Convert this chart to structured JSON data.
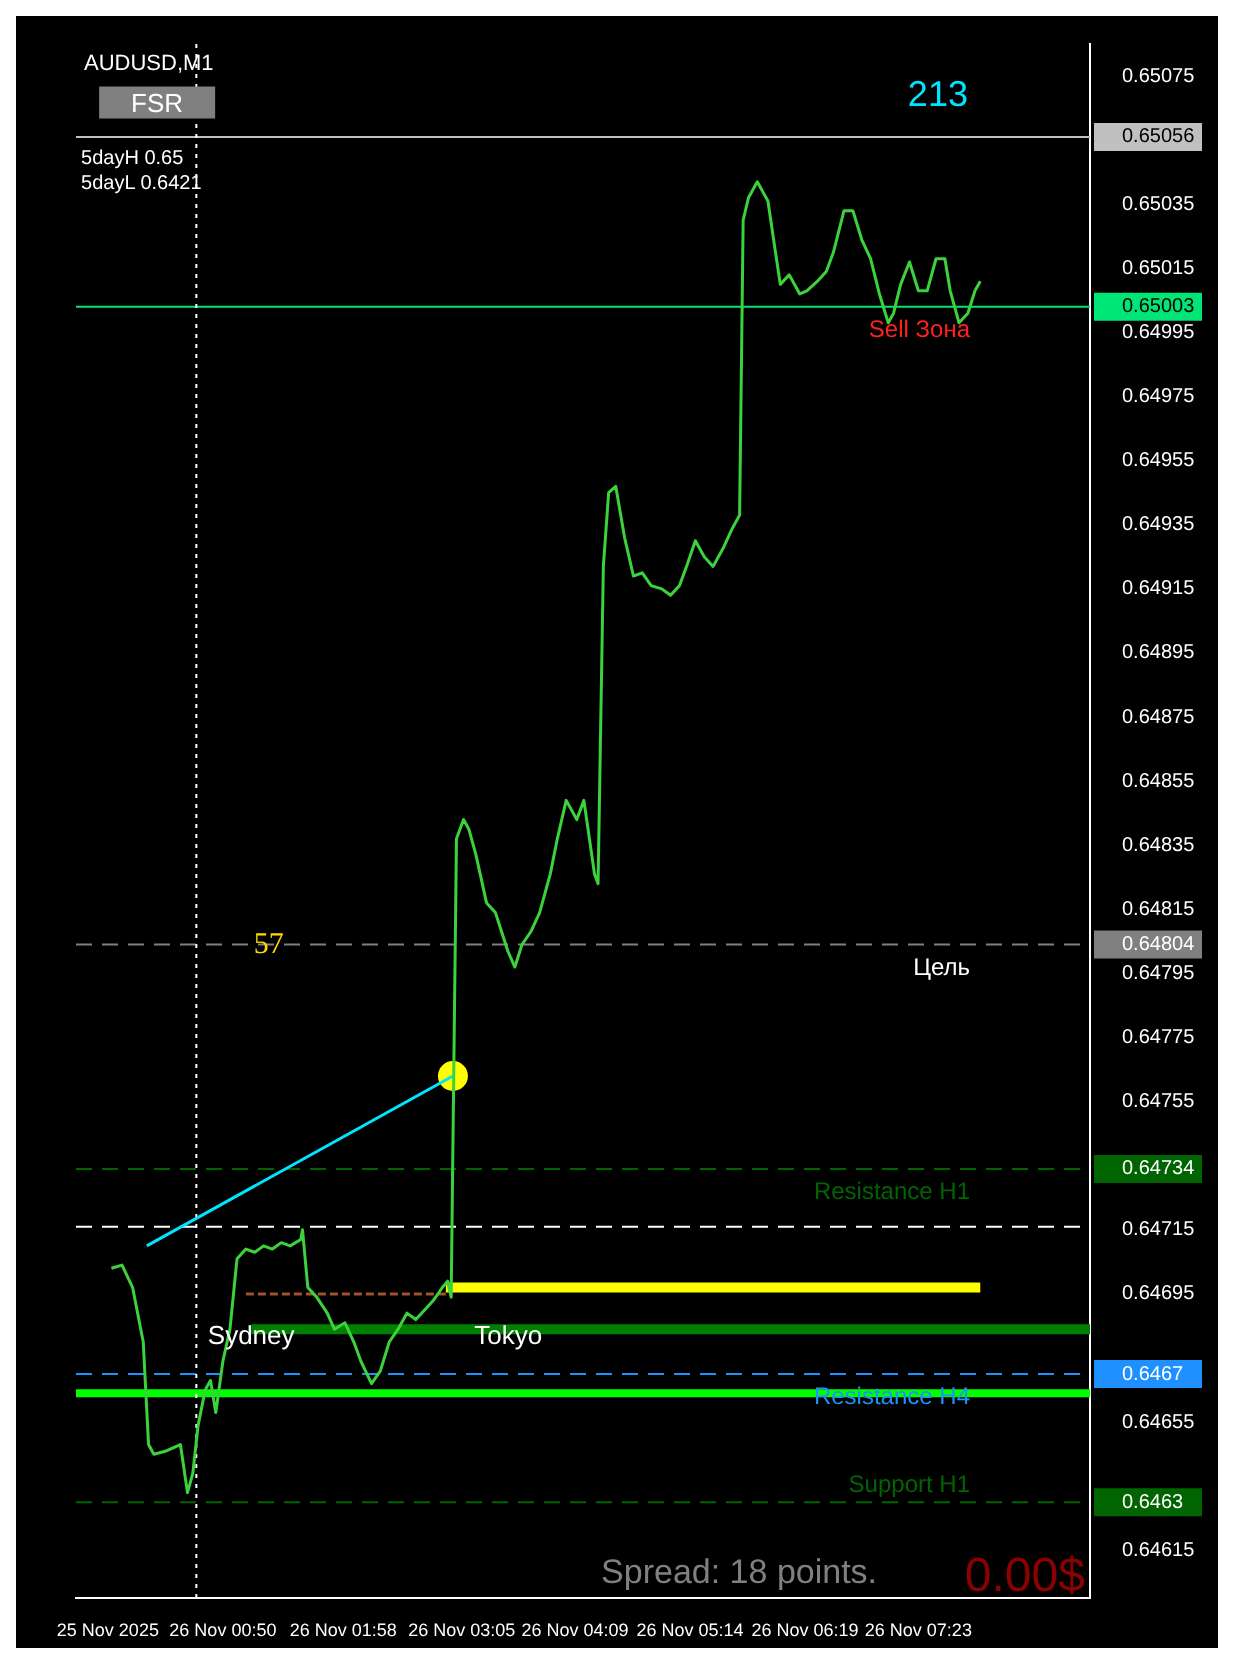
{
  "chart_data": {
    "type": "line",
    "title": "AUDUSD,M1",
    "xlim": [
      "2025-11-25T23:27",
      "2025-11-26T09:00"
    ],
    "ylim": [
      0.646,
      0.65085
    ],
    "xticks": [
      {
        "value": "2025-11-25T23:45",
        "label": "25 Nov 2025"
      },
      {
        "value": "2025-11-26T00:50",
        "label": "26 Nov 00:50"
      },
      {
        "value": "2025-11-26T01:58",
        "label": "26 Nov 01:58"
      },
      {
        "value": "2025-11-26T03:05",
        "label": "26 Nov 03:05"
      },
      {
        "value": "2025-11-26T04:09",
        "label": "26 Nov 04:09"
      },
      {
        "value": "2025-11-26T05:14",
        "label": "26 Nov 05:14"
      },
      {
        "value": "2025-11-26T06:19",
        "label": "26 Nov 06:19"
      },
      {
        "value": "2025-11-26T07:23",
        "label": "26 Nov 07:23"
      }
    ],
    "yticks": [
      0.64615,
      0.6463,
      0.64655,
      0.6467,
      0.64695,
      0.64715,
      0.64734,
      0.64755,
      0.64775,
      0.64795,
      0.64804,
      0.64815,
      0.64835,
      0.64855,
      0.64875,
      0.64895,
      0.64915,
      0.64935,
      0.64955,
      0.64975,
      0.64995,
      0.65003,
      0.65015,
      0.65035,
      0.65056,
      0.65075
    ],
    "grid": false,
    "legend": false,
    "series": [
      {
        "color": "#3cd23c",
        "x": [
          "2025-11-25T23:47",
          "2025-11-25T23:53",
          "2025-11-25T23:59",
          "2025-11-26T00:05",
          "2025-11-26T00:08",
          "2025-11-26T00:11",
          "2025-11-26T00:18",
          "2025-11-26T00:26",
          "2025-11-26T00:30",
          "2025-11-26T00:33",
          "2025-11-26T00:36",
          "2025-11-26T00:40",
          "2025-11-26T00:43",
          "2025-11-26T00:46",
          "2025-11-26T00:50",
          "2025-11-26T00:54",
          "2025-11-26T00:58",
          "2025-11-26T01:03",
          "2025-11-26T01:08",
          "2025-11-26T01:13",
          "2025-11-26T01:18",
          "2025-11-26T01:23",
          "2025-11-26T01:28",
          "2025-11-26T01:34",
          "2025-11-26T01:35",
          "2025-11-26T01:38",
          "2025-11-26T01:43",
          "2025-11-26T01:49",
          "2025-11-26T01:53",
          "2025-11-26T01:59",
          "2025-11-26T02:04",
          "2025-11-26T02:08",
          "2025-11-26T02:14",
          "2025-11-26T02:19",
          "2025-11-26T02:24",
          "2025-11-26T02:29",
          "2025-11-26T02:34",
          "2025-11-26T02:39",
          "2025-11-26T02:44",
          "2025-11-26T02:49",
          "2025-11-26T02:54",
          "2025-11-26T02:57",
          "2025-11-26T02:59",
          "2025-11-26T03:02",
          "2025-11-26T03:06",
          "2025-11-26T03:09",
          "2025-11-26T03:13",
          "2025-11-26T03:19",
          "2025-11-26T03:24",
          "2025-11-26T03:31",
          "2025-11-26T03:35",
          "2025-11-26T03:39",
          "2025-11-26T03:44",
          "2025-11-26T03:49",
          "2025-11-26T03:55",
          "2025-11-26T03:59",
          "2025-11-26T04:04",
          "2025-11-26T04:10",
          "2025-11-26T04:14",
          "2025-11-26T04:20",
          "2025-11-26T04:22",
          "2025-11-26T04:25",
          "2025-11-26T04:28",
          "2025-11-26T04:32",
          "2025-11-26T04:37",
          "2025-11-26T04:42",
          "2025-11-26T04:47",
          "2025-11-26T04:52",
          "2025-11-26T04:58",
          "2025-11-26T05:03",
          "2025-11-26T05:08",
          "2025-11-26T05:12",
          "2025-11-26T05:17",
          "2025-11-26T05:22",
          "2025-11-26T05:27",
          "2025-11-26T05:33",
          "2025-11-26T05:38",
          "2025-11-26T05:42",
          "2025-11-26T05:44",
          "2025-11-26T05:47",
          "2025-11-26T05:52",
          "2025-11-26T05:58",
          "2025-11-26T06:02",
          "2025-11-26T06:05",
          "2025-11-26T06:10",
          "2025-11-26T06:16",
          "2025-11-26T06:20",
          "2025-11-26T06:26",
          "2025-11-26T06:31",
          "2025-11-26T06:35",
          "2025-11-26T06:41",
          "2025-11-26T06:46",
          "2025-11-26T06:51",
          "2025-11-26T06:56",
          "2025-11-26T07:01",
          "2025-11-26T07:06",
          "2025-11-26T07:09",
          "2025-11-26T07:13",
          "2025-11-26T07:18",
          "2025-11-26T07:23",
          "2025-11-26T07:28",
          "2025-11-26T07:33",
          "2025-11-26T07:38",
          "2025-11-26T07:41",
          "2025-11-26T07:46",
          "2025-11-26T07:51",
          "2025-11-26T07:55",
          "2025-11-26T07:58"
        ],
        "values": [
          0.64703,
          0.64704,
          0.64697,
          0.6468,
          0.64648,
          0.64645,
          0.64646,
          0.64648,
          0.64633,
          0.64639,
          0.64654,
          0.64665,
          0.64668,
          0.64658,
          0.64674,
          0.64684,
          0.64706,
          0.64709,
          0.64708,
          0.6471,
          0.64709,
          0.64711,
          0.6471,
          0.64712,
          0.64715,
          0.64697,
          0.64694,
          0.64689,
          0.64684,
          0.64686,
          0.6468,
          0.64674,
          0.64667,
          0.64671,
          0.6468,
          0.64684,
          0.64689,
          0.64687,
          0.6469,
          0.64693,
          0.64697,
          0.64699,
          0.64694,
          0.64837,
          0.64843,
          0.6484,
          0.64832,
          0.64817,
          0.64814,
          0.64802,
          0.64797,
          0.64804,
          0.64808,
          0.64814,
          0.64826,
          0.64837,
          0.64849,
          0.64843,
          0.64849,
          0.64826,
          0.64823,
          0.64922,
          0.64945,
          0.64947,
          0.64931,
          0.64919,
          0.6492,
          0.64916,
          0.64915,
          0.64913,
          0.64916,
          0.64922,
          0.6493,
          0.64925,
          0.64922,
          0.64928,
          0.64934,
          0.64938,
          0.6503,
          0.65037,
          0.65042,
          0.65036,
          0.65021,
          0.6501,
          0.65013,
          0.65007,
          0.65008,
          0.65011,
          0.65014,
          0.6502,
          0.65033,
          0.65033,
          0.65024,
          0.65018,
          0.65007,
          0.64998,
          0.65001,
          0.6501,
          0.65017,
          0.65008,
          0.65008,
          0.65018,
          0.65018,
          0.65008,
          0.64998,
          0.65001,
          0.65008,
          0.65011
        ]
      },
      {
        "color": "#00e5ff",
        "x": [
          "2025-11-26T00:07",
          "2025-11-26T03:00"
        ],
        "values": [
          0.6471,
          0.64763
        ]
      },
      {
        "type": "scatter",
        "color": "#ffff00",
        "marker": "circle",
        "x": [
          "2025-11-26T03:00"
        ],
        "values": [
          0.64763
        ]
      },
      {
        "color": "#ffff00",
        "x": [
          "2025-11-26T02:56",
          "2025-11-26T07:58"
        ],
        "values": [
          0.64697,
          0.64697
        ]
      },
      {
        "color": "#008000",
        "x": [
          "2025-11-26T01:06",
          "2025-11-26T09:00"
        ],
        "values": [
          0.64684,
          0.64684
        ]
      },
      {
        "color": "#a0522d",
        "line_style": "dashed",
        "x": [
          "2025-11-26T01:03",
          "2025-11-26T02:59"
        ],
        "values": [
          0.64695,
          0.64695
        ]
      }
    ],
    "ref_lines": [
      {
        "axis": "y",
        "value": 0.65056,
        "color": "#c0c0c0"
      },
      {
        "axis": "y",
        "value": 0.65003,
        "label": "Sell Зона",
        "color": "#00e676"
      },
      {
        "axis": "y",
        "value": 0.64804,
        "label": "Цель",
        "color": "#808080",
        "line_style": "dashed"
      },
      {
        "axis": "y",
        "value": 0.64734,
        "label": "Resistance H1",
        "color": "#006400",
        "line_style": "dashed"
      },
      {
        "axis": "y",
        "value": 0.64716,
        "color": "#ffffff",
        "line_style": "dashed"
      },
      {
        "axis": "y",
        "value": 0.6467,
        "label": "Resistance H4",
        "color": "#1e90ff",
        "line_style": "dashed"
      },
      {
        "axis": "y",
        "value": 0.64664,
        "color": "#00ff00"
      },
      {
        "axis": "y",
        "value": 0.6463,
        "label": "Support H1",
        "color": "#006400",
        "line_style": "dashed"
      },
      {
        "axis": "x",
        "value": "2025-11-26T00:35",
        "color": "#ffffff",
        "line_style": "dotted"
      }
    ],
    "annotations": [
      "FSR",
      "5dayH 0.65",
      "5dayL 0.6421",
      "Spread: 18 points.",
      "0.00$",
      "213",
      "57",
      {
        "text": "Sydney",
        "x": "2025-11-26T01:06",
        "y": 0.64688
      },
      {
        "text": "Tokyo",
        "x": "2025-11-26T03:12",
        "y": 0.64688
      }
    ]
  }
}
